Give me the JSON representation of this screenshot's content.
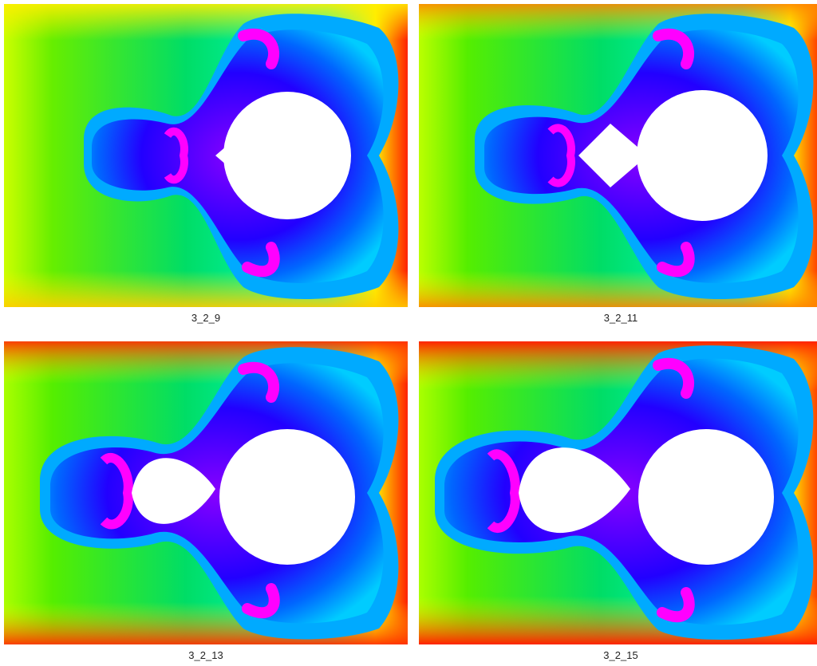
{
  "panels": [
    {
      "caption": "3_2_9"
    },
    {
      "caption": "3_2_11"
    },
    {
      "caption": "3_2_13"
    },
    {
      "caption": "3_2_15"
    }
  ],
  "colors": {
    "background": "#ffffff",
    "palette": [
      "#ff0000",
      "#ff8800",
      "#ffff00",
      "#00dd00",
      "#00ffcc",
      "#00aaff",
      "#0000ff",
      "#8800ff",
      "#ff00ff"
    ]
  }
}
